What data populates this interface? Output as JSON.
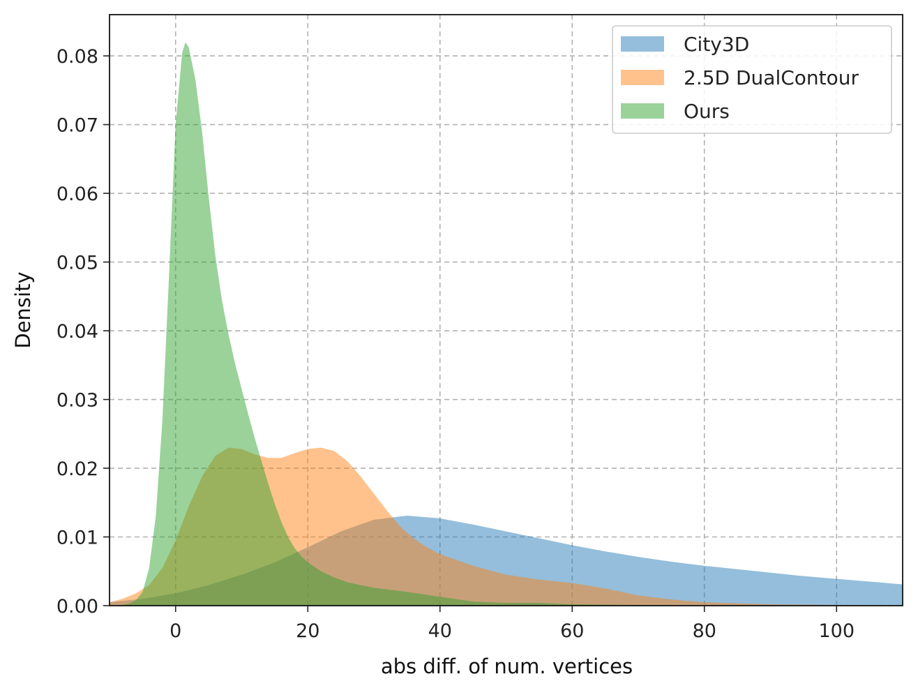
{
  "chart_data": {
    "type": "area",
    "title": "",
    "xlabel": "abs diff. of num. vertices",
    "ylabel": "Density",
    "xlim": [
      -10,
      110
    ],
    "ylim": [
      0,
      0.086
    ],
    "xticks": [
      0,
      20,
      40,
      60,
      80,
      100
    ],
    "yticks": [
      0.0,
      0.01,
      0.02,
      0.03,
      0.04,
      0.05,
      0.06,
      0.07,
      0.08
    ],
    "xtick_labels": [
      "0",
      "20",
      "40",
      "60",
      "80",
      "100"
    ],
    "ytick_labels": [
      "0.00",
      "0.01",
      "0.02",
      "0.03",
      "0.04",
      "0.05",
      "0.06",
      "0.07",
      "0.08"
    ],
    "grid": true,
    "legend_position": "top-right",
    "series": [
      {
        "name": "City3D",
        "color": "#1f77b4",
        "x": [
          -10,
          -5,
          0,
          5,
          10,
          15,
          20,
          25,
          30,
          35,
          40,
          45,
          50,
          55,
          60,
          65,
          70,
          75,
          80,
          85,
          90,
          95,
          100,
          105,
          110
        ],
        "y": [
          0.0005,
          0.001,
          0.0018,
          0.003,
          0.0045,
          0.0063,
          0.0085,
          0.0108,
          0.0125,
          0.0131,
          0.0127,
          0.0118,
          0.0108,
          0.0098,
          0.0088,
          0.0079,
          0.0071,
          0.0064,
          0.0058,
          0.0053,
          0.0048,
          0.0043,
          0.0039,
          0.0035,
          0.0031
        ]
      },
      {
        "name": "2.5D DualContour",
        "color": "#ff7f0e",
        "x": [
          -10,
          -8,
          -6,
          -4,
          -2,
          0,
          2,
          4,
          6,
          8,
          10,
          12,
          14,
          16,
          18,
          20,
          22,
          24,
          26,
          28,
          30,
          32,
          34,
          36,
          38,
          40,
          45,
          50,
          55,
          60,
          65,
          70,
          75,
          80,
          90,
          100,
          110
        ],
        "y": [
          0.0005,
          0.001,
          0.0018,
          0.003,
          0.0055,
          0.0095,
          0.0145,
          0.0188,
          0.0218,
          0.023,
          0.0228,
          0.022,
          0.0215,
          0.0215,
          0.0222,
          0.0228,
          0.023,
          0.0225,
          0.021,
          0.0188,
          0.0163,
          0.0138,
          0.0115,
          0.0098,
          0.0085,
          0.0075,
          0.0058,
          0.0045,
          0.0038,
          0.0033,
          0.0025,
          0.0015,
          0.0009,
          0.0005,
          0.0002,
          0.0001,
          0.0
        ]
      },
      {
        "name": "Ours",
        "color": "#2ca02c",
        "x": [
          -10,
          -8,
          -7,
          -6,
          -5,
          -4,
          -3,
          -2,
          -1,
          0,
          1,
          1.5,
          2,
          3,
          4,
          5,
          6,
          7,
          8,
          9,
          10,
          11,
          12,
          13,
          14,
          15,
          16,
          17,
          18,
          19,
          20,
          22,
          24,
          26,
          28,
          30,
          35,
          40,
          45,
          50,
          55,
          60,
          70,
          80,
          90,
          100,
          110
        ],
        "y": [
          0.0,
          0.0001,
          0.0003,
          0.0008,
          0.002,
          0.0055,
          0.013,
          0.027,
          0.048,
          0.07,
          0.0805,
          0.082,
          0.0812,
          0.0765,
          0.069,
          0.0595,
          0.051,
          0.0445,
          0.0395,
          0.0352,
          0.0315,
          0.0278,
          0.0243,
          0.021,
          0.0178,
          0.0148,
          0.0122,
          0.01,
          0.0084,
          0.0072,
          0.0063,
          0.005,
          0.0041,
          0.0034,
          0.003,
          0.0026,
          0.002,
          0.0013,
          0.0006,
          0.0004,
          0.0004,
          0.0002,
          0.0001,
          0.0,
          0.0,
          0.0,
          0.0
        ]
      }
    ]
  }
}
